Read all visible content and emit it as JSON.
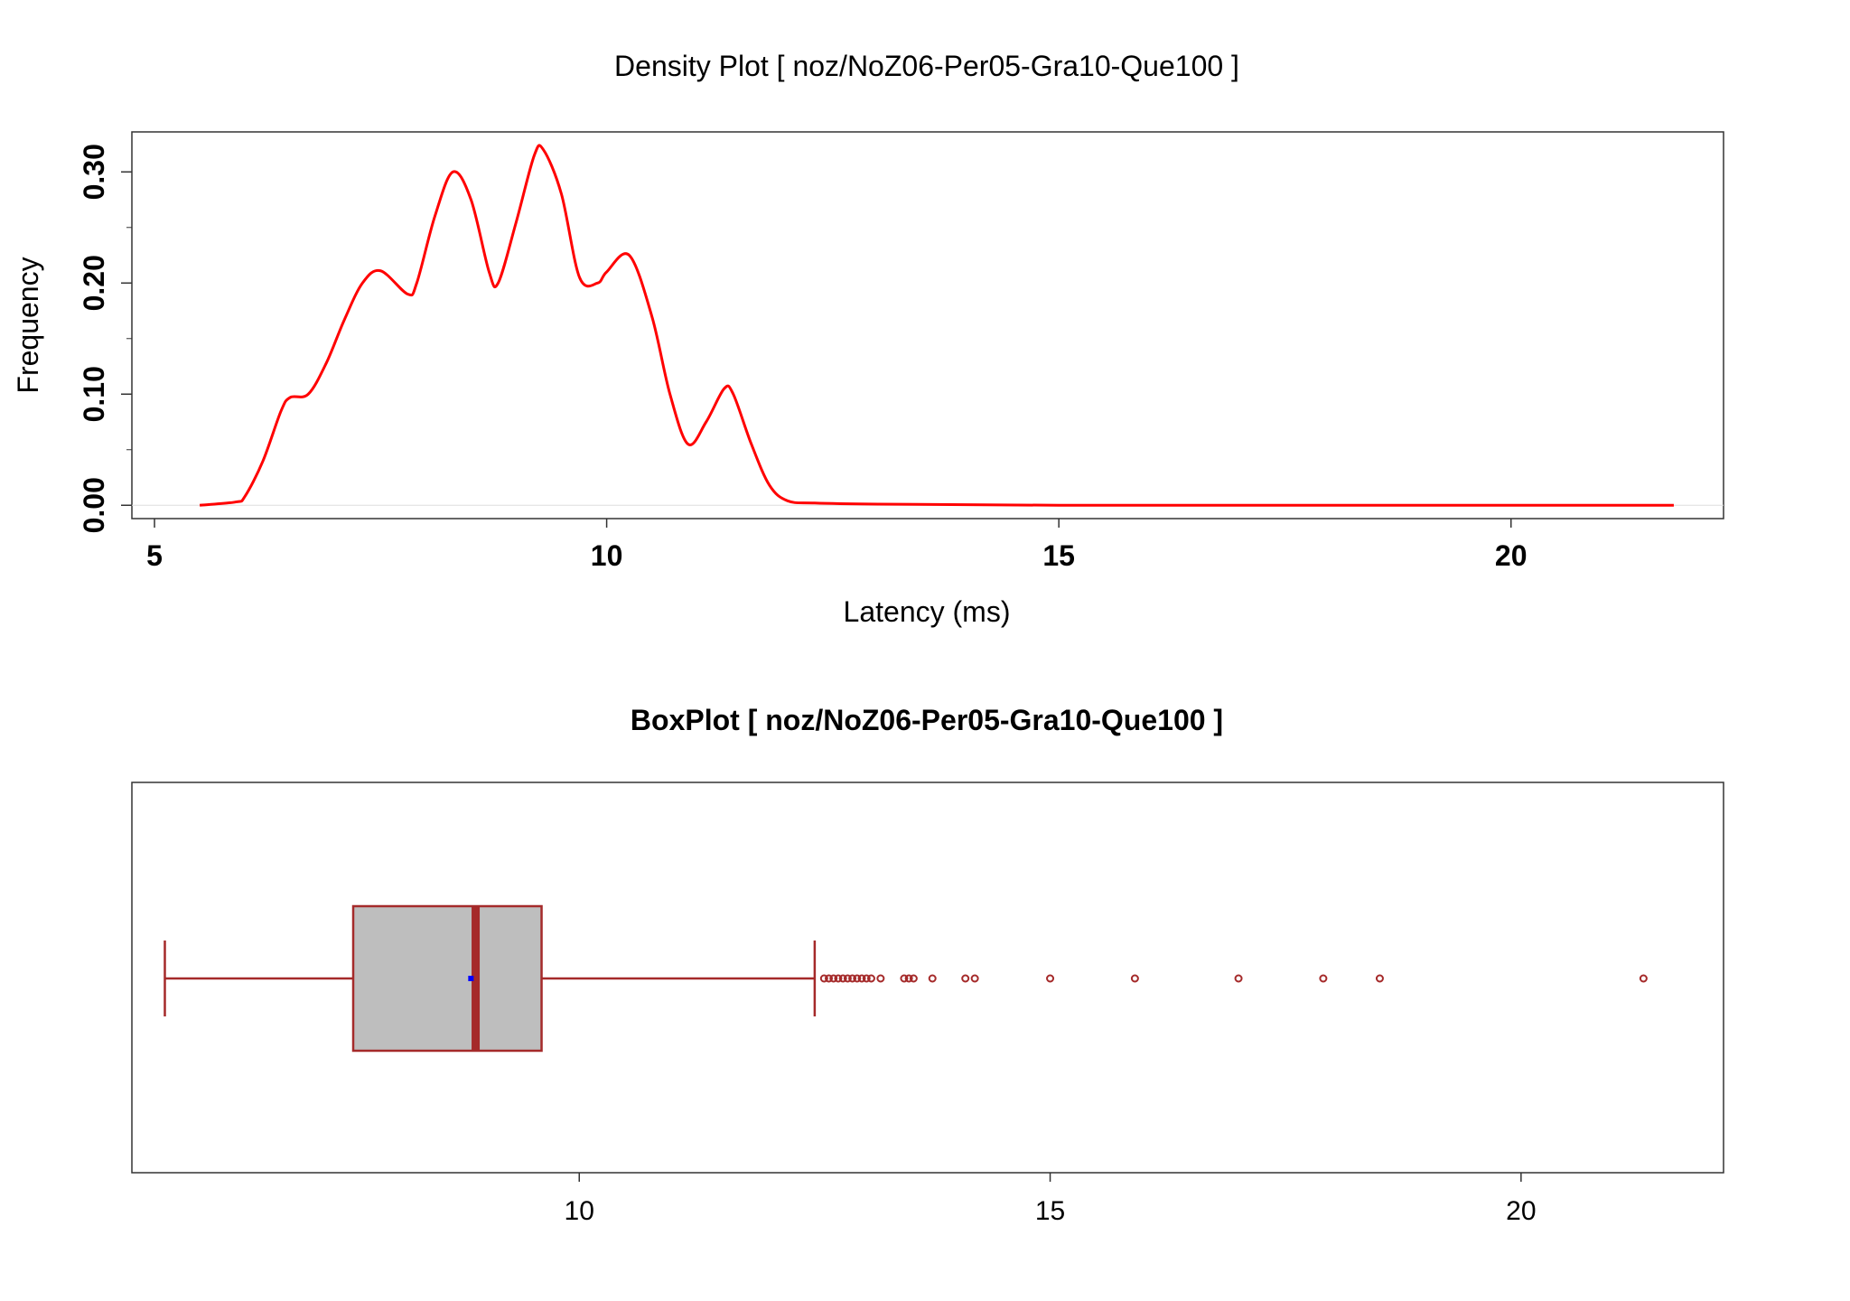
{
  "chart_data": [
    {
      "type": "line",
      "title": "Density Plot [ noz/NoZ06-Per05-Gra10-Que100 ]",
      "xlabel": "Latency (ms)",
      "ylabel": "Frequency",
      "xlim": [
        4.75,
        22.35
      ],
      "ylim": [
        -0.012,
        0.336
      ],
      "x_ticks": [
        5,
        10,
        15,
        20
      ],
      "x_tick_labels": [
        "5",
        "10",
        "15",
        "20"
      ],
      "y_ticks": [
        0,
        0.1,
        0.2,
        0.3
      ],
      "y_tick_labels": [
        "0.00",
        "0.10",
        "0.20",
        "0.30"
      ],
      "y_minor_ticks": [
        0.05,
        0.15,
        0.25
      ],
      "grid": false,
      "line_color": "#ff0000",
      "series": [
        {
          "x": [
            5.5,
            5.9,
            6.0,
            6.2,
            6.4,
            6.5,
            6.7,
            6.9,
            7.1,
            7.3,
            7.5,
            7.8,
            7.9,
            8.1,
            8.3,
            8.5,
            8.7,
            8.8,
            9.0,
            9.2,
            9.3,
            9.5,
            9.7,
            9.9,
            10.0,
            10.25,
            10.5,
            10.7,
            10.9,
            11.1,
            11.3,
            11.4,
            11.6,
            11.8,
            12.0,
            12.3,
            13.0,
            15.0,
            18.0,
            21.8
          ],
          "y": [
            0.0,
            0.003,
            0.008,
            0.04,
            0.085,
            0.097,
            0.1,
            0.128,
            0.167,
            0.2,
            0.211,
            0.19,
            0.2,
            0.26,
            0.3,
            0.275,
            0.21,
            0.2,
            0.255,
            0.315,
            0.32,
            0.28,
            0.205,
            0.2,
            0.21,
            0.225,
            0.17,
            0.1,
            0.055,
            0.075,
            0.105,
            0.1,
            0.055,
            0.018,
            0.004,
            0.002,
            0.001,
            0.0,
            0.0,
            0.0
          ]
        }
      ]
    },
    {
      "type": "box",
      "title": "BoxPlot [ noz/NoZ06-Per05-Gra10-Que100 ]",
      "xlim": [
        5.25,
        22.15
      ],
      "x_ticks": [
        10,
        15,
        20
      ],
      "x_tick_labels": [
        "10",
        "15",
        "20"
      ],
      "whisker_low": 5.6,
      "q1": 7.6,
      "median": 8.9,
      "mean": 8.85,
      "q3": 9.6,
      "whisker_high": 12.5,
      "outliers": [
        12.6,
        12.65,
        12.7,
        12.75,
        12.8,
        12.85,
        12.9,
        12.95,
        13.0,
        13.05,
        13.1,
        13.2,
        13.45,
        13.5,
        13.55,
        13.75,
        14.1,
        14.2,
        15.0,
        15.9,
        17.0,
        17.9,
        18.5,
        21.3
      ],
      "box_fill": "#bebebe",
      "box_stroke": "#a52a2a",
      "mean_color": "#0000ff"
    }
  ]
}
